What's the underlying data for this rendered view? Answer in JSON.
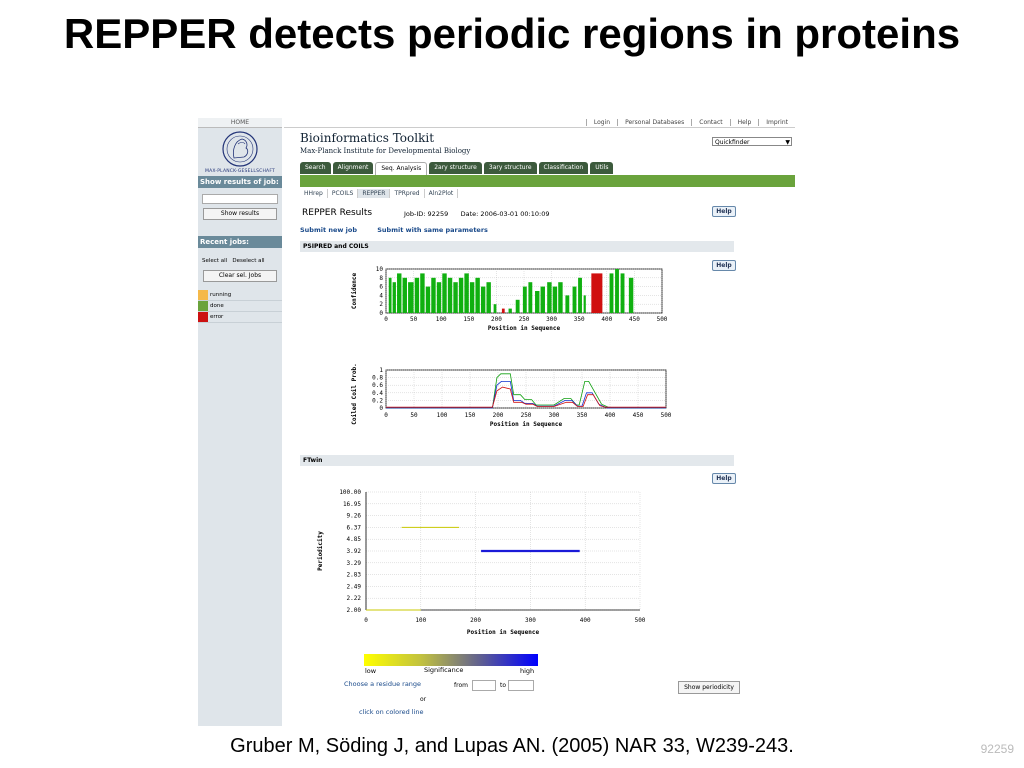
{
  "slide": {
    "title": "REPPER detects periodic regions in proteins",
    "caption": "Gruber M, Söding J, and Lupas AN. (2005) NAR 33, W239-243.",
    "slide_number": "92259"
  },
  "sidebar": {
    "home": "HOME",
    "logo_label": "MAX-PLANCK-GESELLSCHAFT",
    "show_results_heading": "Show results of job:",
    "show_results_button": "Show results",
    "recent_jobs_heading": "Recent jobs:",
    "select_all": "Select all",
    "deselect_all": "Deselect all",
    "clear_button": "Clear sel. Jobs",
    "legend": [
      {
        "label": "running",
        "color": "#f5b94a"
      },
      {
        "label": "done",
        "color": "#6aa33c"
      },
      {
        "label": "error",
        "color": "#cc1111"
      }
    ]
  },
  "header": {
    "top_links": [
      "Login",
      "Personal Databases",
      "Contact",
      "Help",
      "Imprint"
    ],
    "brand_title": "Bioinformatics Toolkit",
    "brand_subtitle": "Max-Planck Institute for Developmental Biology",
    "quickfinder": "Quickfinder",
    "nav_tabs": [
      "Search",
      "Alignment",
      "Seq. Analysis",
      "2ary structure",
      "3ary structure",
      "Classification",
      "Utils"
    ],
    "active_nav": "Seq. Analysis",
    "sub_tabs": [
      "HHrep",
      "PCOILS",
      "REPPER",
      "TPRpred",
      "Aln2Plot"
    ],
    "active_sub": "REPPER"
  },
  "results": {
    "title": "REPPER Results",
    "job_id": "Job-ID: 92259",
    "date": "Date: 2006-03-01 00:10:09",
    "help": "Help",
    "submit_new": "Submit new job",
    "submit_same": "Submit with same parameters",
    "section_psipred": "PSIPRED and COILS",
    "section_ftwin": "FTwin"
  },
  "chart_data": [
    {
      "type": "bar",
      "name": "psipred",
      "xlabel": "Position in Sequence",
      "ylabel": "Confidence",
      "xlim": [
        0,
        500
      ],
      "ylim": [
        0,
        10
      ],
      "xticks": [
        0,
        50,
        100,
        150,
        200,
        250,
        300,
        350,
        400,
        450,
        500
      ],
      "yticks": [
        0,
        2,
        4,
        6,
        8,
        10
      ],
      "colors": {
        "helix": "#d01010",
        "strand": "#10b010"
      },
      "strand_segments": [
        [
          5,
          10,
          8
        ],
        [
          12,
          18,
          7
        ],
        [
          20,
          28,
          9
        ],
        [
          30,
          38,
          8
        ],
        [
          40,
          50,
          7
        ],
        [
          52,
          60,
          8
        ],
        [
          62,
          70,
          9
        ],
        [
          72,
          80,
          6
        ],
        [
          82,
          90,
          8
        ],
        [
          92,
          100,
          7
        ],
        [
          102,
          110,
          9
        ],
        [
          112,
          120,
          8
        ],
        [
          122,
          130,
          7
        ],
        [
          132,
          140,
          8
        ],
        [
          142,
          150,
          9
        ],
        [
          152,
          160,
          7
        ],
        [
          162,
          170,
          8
        ],
        [
          172,
          180,
          6
        ],
        [
          182,
          190,
          7
        ],
        [
          195,
          200,
          2
        ],
        [
          222,
          228,
          1
        ],
        [
          235,
          242,
          3
        ],
        [
          248,
          255,
          6
        ],
        [
          258,
          265,
          7
        ],
        [
          270,
          278,
          5
        ],
        [
          280,
          288,
          6
        ],
        [
          292,
          300,
          7
        ],
        [
          302,
          310,
          6
        ],
        [
          312,
          320,
          7
        ],
        [
          325,
          332,
          4
        ],
        [
          338,
          345,
          6
        ],
        [
          348,
          355,
          8
        ],
        [
          358,
          362,
          4
        ],
        [
          405,
          412,
          9
        ],
        [
          415,
          422,
          10
        ],
        [
          425,
          432,
          9
        ],
        [
          440,
          448,
          8
        ]
      ],
      "helix_segments": [
        [
          210,
          215,
          1
        ],
        [
          372,
          392,
          9
        ]
      ]
    },
    {
      "type": "line",
      "name": "coils",
      "xlabel": "Position in Sequence",
      "ylabel": "Coiled Coil Prob.",
      "xlim": [
        0,
        500
      ],
      "ylim": [
        0,
        1
      ],
      "xticks": [
        0,
        50,
        100,
        150,
        200,
        250,
        300,
        350,
        400,
        450,
        500
      ],
      "yticks": [
        "0",
        "0.2",
        "0.4",
        "0.6",
        "0.8",
        "1"
      ],
      "series": [
        {
          "color": "#10a010",
          "x": [
            0,
            190,
            198,
            205,
            222,
            228,
            240,
            248,
            260,
            268,
            300,
            318,
            330,
            340,
            345,
            355,
            362,
            385,
            400,
            500
          ],
          "y": [
            0,
            0,
            0.8,
            0.9,
            0.9,
            0.35,
            0.35,
            0.22,
            0.22,
            0.08,
            0.08,
            0.25,
            0.25,
            0.08,
            0.08,
            0.7,
            0.7,
            0.1,
            0,
            0
          ]
        },
        {
          "color": "#1030d0",
          "x": [
            0,
            190,
            198,
            206,
            222,
            228,
            240,
            248,
            262,
            270,
            300,
            320,
            332,
            342,
            350,
            358,
            368,
            380,
            395,
            500
          ],
          "y": [
            0,
            0,
            0.6,
            0.7,
            0.7,
            0.2,
            0.2,
            0.12,
            0.12,
            0.05,
            0.05,
            0.2,
            0.2,
            0.05,
            0.05,
            0.4,
            0.4,
            0.1,
            0,
            0
          ]
        },
        {
          "color": "#d01010",
          "x": [
            0,
            190,
            198,
            208,
            222,
            228,
            242,
            250,
            262,
            270,
            300,
            322,
            333,
            342,
            352,
            360,
            370,
            382,
            392,
            500
          ],
          "y": [
            0.02,
            0.02,
            0.45,
            0.55,
            0.5,
            0.15,
            0.15,
            0.1,
            0.1,
            0.04,
            0.04,
            0.15,
            0.15,
            0.04,
            0.04,
            0.35,
            0.35,
            0.06,
            0.02,
            0.02
          ]
        }
      ]
    },
    {
      "type": "scatter",
      "name": "ftwin",
      "xlabel": "Position in Sequence",
      "ylabel": "Periodicity",
      "xlim": [
        0,
        500
      ],
      "xticks": [
        0,
        100,
        200,
        300,
        400,
        500
      ],
      "yticks": [
        "2.00",
        "2.22",
        "2.49",
        "2.83",
        "3.29",
        "3.92",
        "4.85",
        "6.37",
        "9.26",
        "16.95",
        "100.00"
      ],
      "segments": [
        {
          "x": [
            65,
            170
          ],
          "y": "6.37",
          "color": "#c8c800",
          "weight": 1
        },
        {
          "x": [
            0,
            100
          ],
          "y": "2.00",
          "color": "#c8c800",
          "weight": 1
        },
        {
          "x": [
            210,
            390
          ],
          "y": "3.92",
          "color": "#1a1ad8",
          "weight": 3
        }
      ]
    }
  ],
  "significance": {
    "low": "low",
    "label": "Significance",
    "high": "high",
    "choose_range": "Choose a residue range",
    "from": "from",
    "to": "to",
    "or": "or",
    "click_line": "click on colored line",
    "show_periodicity": "Show periodicity"
  }
}
